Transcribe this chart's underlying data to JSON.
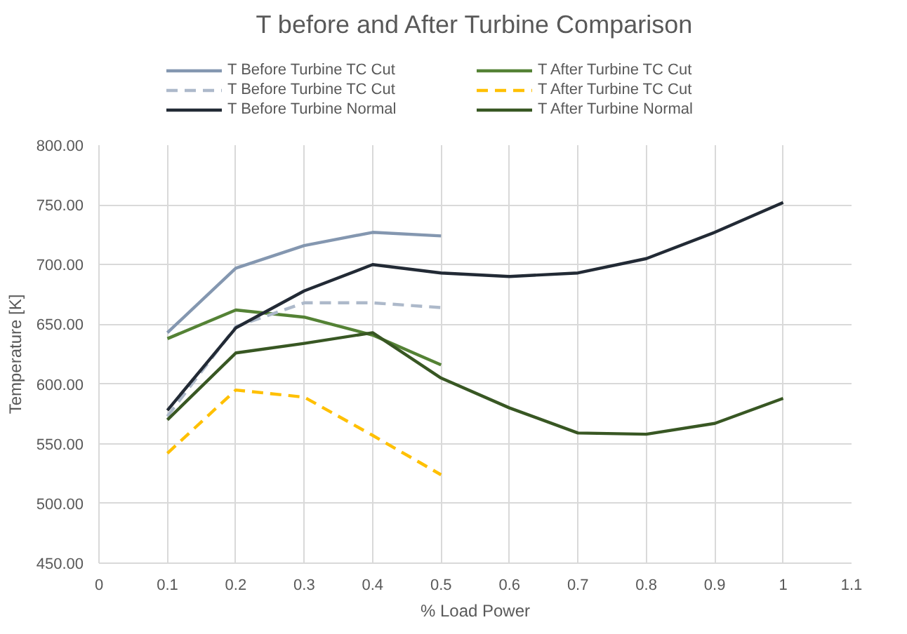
{
  "chart_data": {
    "type": "line",
    "title": "T before and After Turbine Comparison",
    "xlabel": "% Load Power",
    "ylabel": "Temperature [K]",
    "xlim": [
      0,
      1.1
    ],
    "xticks": [
      0,
      0.1,
      0.2,
      0.3,
      0.4,
      0.5,
      0.6,
      0.7,
      0.8,
      0.9,
      1,
      1.1
    ],
    "ylim": [
      450,
      800
    ],
    "yticks": [
      {
        "value": 450,
        "label": "450.00"
      },
      {
        "value": 500,
        "label": "500.00"
      },
      {
        "value": 550,
        "label": "550.00"
      },
      {
        "value": 600,
        "label": "600.00"
      },
      {
        "value": 650,
        "label": "650.00"
      },
      {
        "value": 700,
        "label": "700.00"
      },
      {
        "value": 750,
        "label": "750.00"
      },
      {
        "value": 800,
        "label": "800.00"
      }
    ],
    "grid": true,
    "legend": "top",
    "marker": "none",
    "series": [
      {
        "name": "T Before Turbine TC Cut",
        "color": "#8497b0",
        "line_style": "solid",
        "x": [
          0.1,
          0.2,
          0.3,
          0.4,
          0.5
        ],
        "values": [
          643,
          697,
          716,
          727,
          724
        ]
      },
      {
        "name": "T After Turbine TC Cut",
        "color": "#548235",
        "line_style": "solid",
        "x": [
          0.1,
          0.2,
          0.3,
          0.4,
          0.5
        ],
        "values": [
          638,
          662,
          656,
          641,
          616
        ]
      },
      {
        "name": "T Before Turbine TC Cut",
        "color": "#adb9ca",
        "line_style": "dashed",
        "x": [
          0.1,
          0.2,
          0.3,
          0.4,
          0.5
        ],
        "values": [
          573,
          648,
          668,
          668,
          664
        ]
      },
      {
        "name": "T After Turbine TC Cut",
        "color": "#ffc000",
        "line_style": "dashed",
        "x": [
          0.1,
          0.2,
          0.3,
          0.4,
          0.5
        ],
        "values": [
          542,
          595,
          589,
          557,
          524
        ]
      },
      {
        "name": "T Before Turbine Normal",
        "color": "#222a35",
        "line_style": "solid",
        "x": [
          0.1,
          0.2,
          0.3,
          0.4,
          0.5,
          0.6,
          0.7,
          0.8,
          0.9,
          1
        ],
        "values": [
          578,
          647,
          678,
          700,
          693,
          690,
          693,
          705,
          727,
          752
        ]
      },
      {
        "name": "T After Turbine Normal",
        "color": "#385723",
        "line_style": "solid",
        "x": [
          0.1,
          0.2,
          0.3,
          0.4,
          0.5,
          0.6,
          0.7,
          0.8,
          0.9,
          1
        ],
        "values": [
          570,
          626,
          634,
          643,
          605,
          580,
          559,
          558,
          567,
          588
        ]
      }
    ]
  }
}
